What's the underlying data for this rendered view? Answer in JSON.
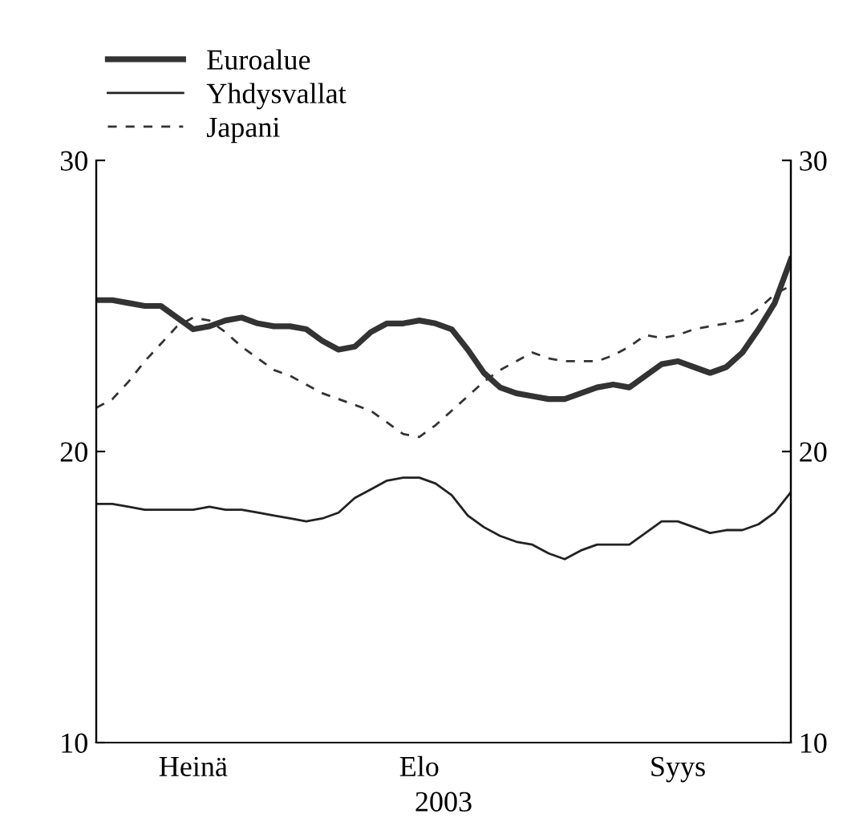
{
  "chart_data": {
    "type": "line",
    "xlabel": "2003",
    "legend": "top left",
    "grid": false,
    "categories": [
      null,
      null,
      null,
      null,
      null,
      null,
      "Heinä",
      null,
      null,
      null,
      null,
      null,
      null,
      null,
      null,
      null,
      null,
      null,
      null,
      null,
      "Elo",
      null,
      null,
      null,
      null,
      null,
      null,
      null,
      null,
      null,
      null,
      null,
      null,
      null,
      null,
      null,
      "Syys",
      null,
      null,
      null,
      null,
      null,
      null,
      null
    ],
    "ylim": [
      10,
      30
    ],
    "yticks": [
      10,
      20,
      30
    ],
    "y2lim": [
      10,
      30
    ],
    "y2ticks": [
      10,
      20,
      30
    ],
    "series": [
      {
        "name": "Euroalue",
        "color": "#333333",
        "line_style": "solid",
        "values": [
          25.2,
          25.2,
          25.1,
          25.0,
          25.0,
          24.6,
          24.2,
          24.3,
          24.5,
          24.6,
          24.4,
          24.3,
          24.3,
          24.2,
          23.8,
          23.5,
          23.6,
          24.1,
          24.4,
          24.4,
          24.5,
          24.4,
          24.2,
          23.5,
          22.7,
          22.2,
          22.0,
          21.9,
          21.8,
          21.8,
          22.0,
          22.2,
          22.3,
          22.2,
          22.6,
          23.0,
          23.1,
          22.9,
          22.7,
          22.9,
          23.4,
          24.2,
          25.1,
          26.6
        ]
      },
      {
        "name": "Yhdysvallat",
        "color": "#222222",
        "line_style": "solid",
        "values": [
          18.2,
          18.2,
          18.1,
          18.0,
          18.0,
          18.0,
          18.0,
          18.1,
          18.0,
          18.0,
          17.9,
          17.8,
          17.7,
          17.6,
          17.7,
          17.9,
          18.4,
          18.7,
          19.0,
          19.1,
          19.1,
          18.9,
          18.5,
          17.8,
          17.4,
          17.1,
          16.9,
          16.8,
          16.5,
          16.3,
          16.6,
          16.8,
          16.8,
          16.8,
          17.2,
          17.6,
          17.6,
          17.4,
          17.2,
          17.3,
          17.3,
          17.5,
          17.9,
          18.6
        ]
      },
      {
        "name": "Japani",
        "color": "#333333",
        "line_style": "dashed",
        "values": [
          21.5,
          21.8,
          22.4,
          23.1,
          23.7,
          24.3,
          24.6,
          24.5,
          24.1,
          23.6,
          23.2,
          22.8,
          22.6,
          22.3,
          22.0,
          21.8,
          21.6,
          21.4,
          21.0,
          20.6,
          20.5,
          20.9,
          21.4,
          21.9,
          22.4,
          22.8,
          23.1,
          23.4,
          23.2,
          23.1,
          23.1,
          23.1,
          23.3,
          23.6,
          24.0,
          23.9,
          24.0,
          24.2,
          24.3,
          24.4,
          24.5,
          24.9,
          25.4,
          25.7
        ]
      }
    ]
  }
}
